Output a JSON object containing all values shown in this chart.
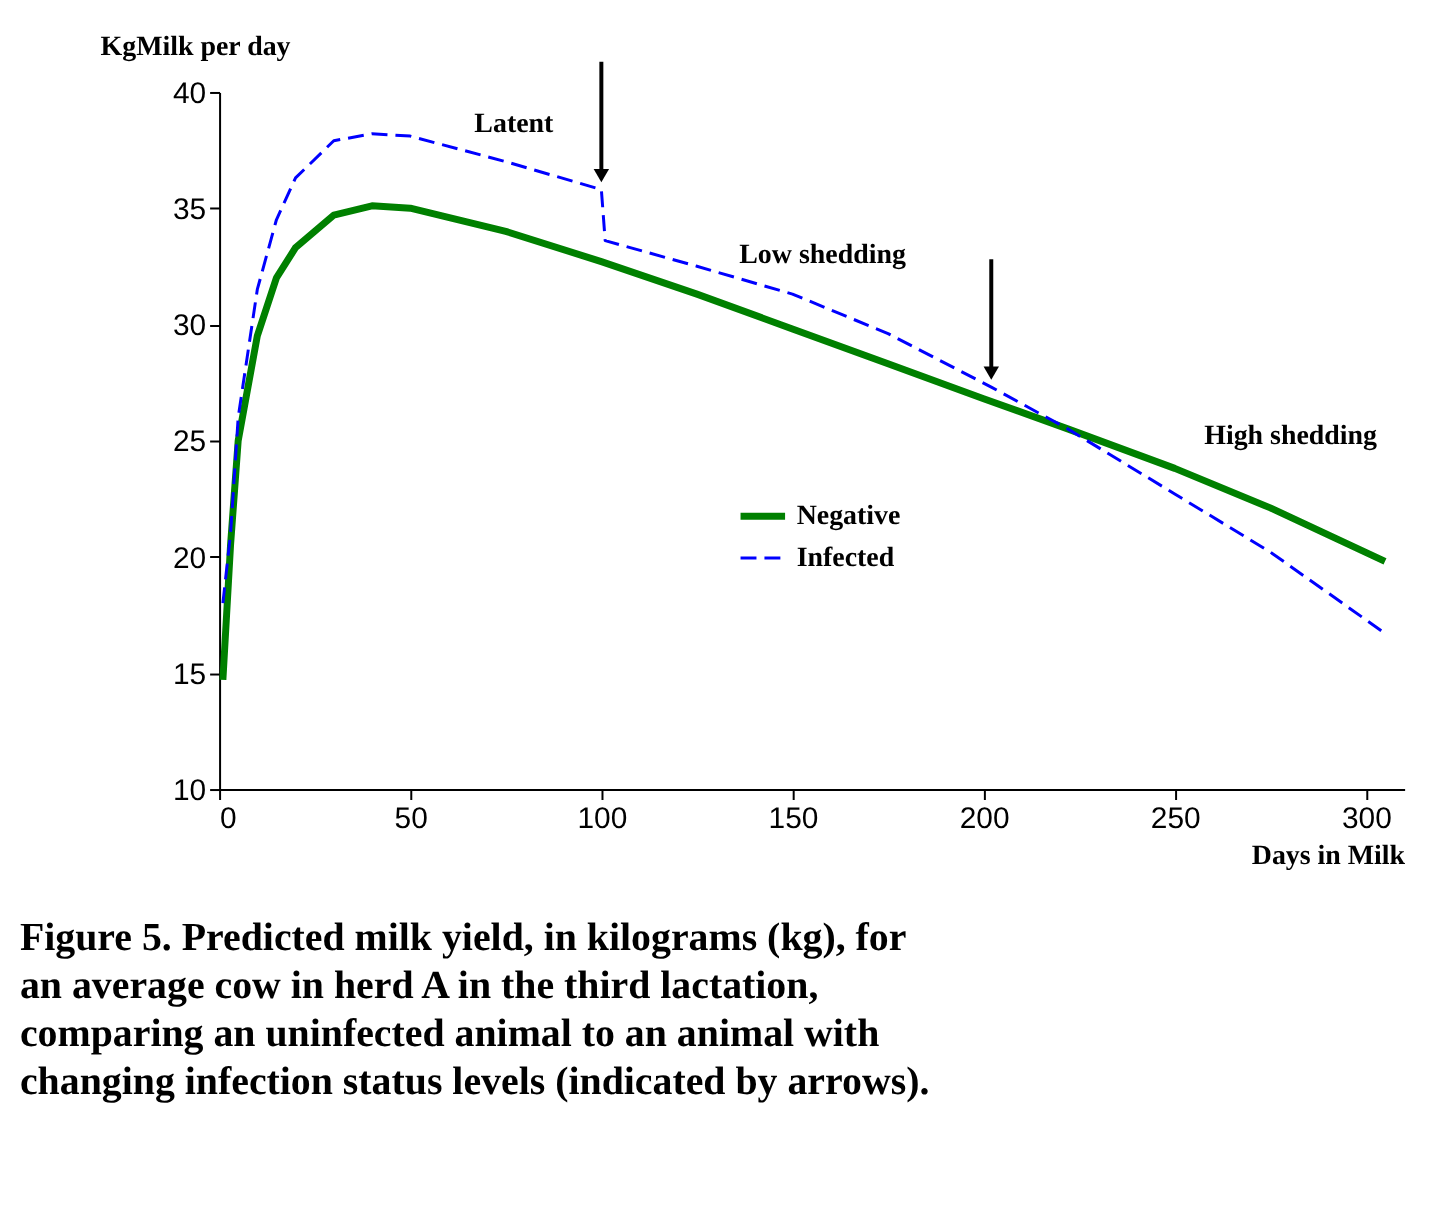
{
  "chart_data": {
    "type": "line",
    "title": "Figure 5.  Predicted milk yield, in kilograms (kg), for an average cow in herd A in the third lactation, comparing an uninfected animal to an animal with changing infection status levels (indicated by arrows).",
    "xlabel": "Days in Milk",
    "ylabel": "KgMilk per day",
    "xlim": [
      0,
      310
    ],
    "xticks": [
      0,
      50,
      100,
      150,
      200,
      250,
      300
    ],
    "ylim": [
      10,
      40
    ],
    "yticks": [
      10,
      15,
      20,
      25,
      30,
      35,
      40
    ],
    "grid": false,
    "legend": "bottom left",
    "marker": "none",
    "series": [
      {
        "name": "Negative",
        "color": "#008000",
        "line_style": "solid",
        "x": [
          1,
          3,
          5,
          10,
          15,
          20,
          30,
          40,
          50,
          75,
          100,
          125,
          150,
          175,
          200,
          222,
          250,
          275,
          305
        ],
        "values": [
          14.7,
          20.5,
          25,
          29.5,
          32,
          33.3,
          34.7,
          35.1,
          35,
          34,
          32.7,
          31.3,
          29.8,
          28.3,
          26.8,
          25.5,
          23.8,
          22.1,
          19.8
        ]
      },
      {
        "name": "Infected",
        "color": "#0000ff",
        "line_style": "dashed",
        "x": [
          1,
          3,
          5,
          10,
          15,
          20,
          30,
          40,
          50,
          75,
          100,
          101,
          125,
          150,
          175,
          202,
          222,
          250,
          275,
          305
        ],
        "values": [
          18,
          21,
          26,
          31.5,
          34.5,
          36.3,
          37.9,
          38.2,
          38.1,
          37,
          35.8,
          33.6,
          32.5,
          31.3,
          29.6,
          27.3,
          25.5,
          22.7,
          20.2,
          16.7
        ]
      }
    ],
    "annotations": [
      "Latent",
      "Low shedding",
      "High shedding"
    ]
  }
}
